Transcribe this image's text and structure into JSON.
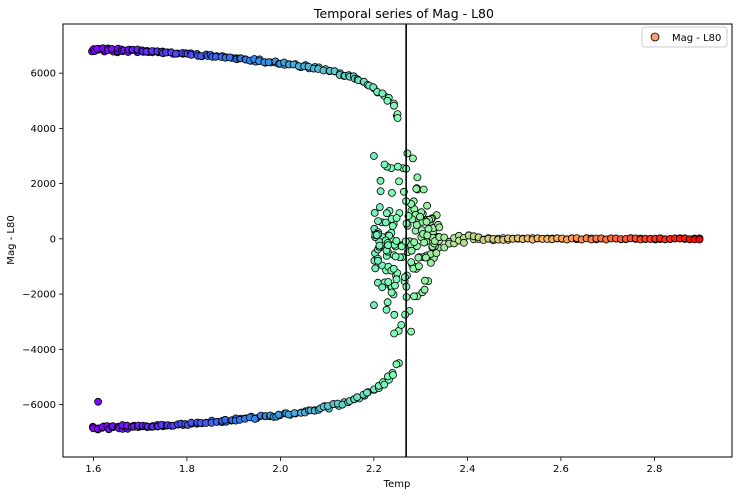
{
  "chart_data": {
    "type": "scatter",
    "title": "Temporal series of Mag - L80",
    "xlabel": "Temp",
    "ylabel": "Mag - L80",
    "xlim": [
      1.535,
      2.966
    ],
    "ylim": [
      -7900,
      7780
    ],
    "xticks": [
      1.6,
      1.8,
      2.0,
      2.2,
      2.4,
      2.6,
      2.8
    ],
    "xtick_labels": [
      "1.6",
      "1.8",
      "2.0",
      "2.2",
      "2.4",
      "2.6",
      "2.8"
    ],
    "yticks": [
      -6000,
      -4000,
      -2000,
      0,
      2000,
      4000,
      6000
    ],
    "ytick_labels": [
      "−6000",
      "−4000",
      "−2000",
      "0",
      "2000",
      "4000",
      "6000"
    ],
    "grid": false,
    "legend": {
      "position": "top-right",
      "entries": [
        {
          "label": "Mag - L80",
          "color": "#f4a070"
        }
      ]
    },
    "reference_line": {
      "orientation": "vertical",
      "x": 2.269,
      "color": "#000000"
    },
    "colormap": "rainbow",
    "marker": {
      "shape": "circle",
      "edgecolor": "#000000"
    },
    "x_range_of_points": [
      1.6,
      2.9
    ],
    "branches": [
      {
        "name": "upper",
        "x": [
          1.6,
          1.7,
          1.8,
          1.9,
          2.0,
          2.1,
          2.15,
          2.2,
          2.24,
          2.26
        ],
        "y": [
          6850,
          6800,
          6700,
          6550,
          6380,
          6100,
          5900,
          5500,
          4900,
          4200
        ]
      },
      {
        "name": "lower",
        "x": [
          1.6,
          1.7,
          1.8,
          1.9,
          2.0,
          2.1,
          2.15,
          2.2,
          2.24,
          2.26
        ],
        "y": [
          -6850,
          -6800,
          -6700,
          -6550,
          -6380,
          -6100,
          -5900,
          -5500,
          -4900,
          -4200
        ]
      }
    ],
    "critical_region": {
      "x": [
        2.2,
        2.34
      ],
      "y": [
        -5000,
        4800
      ]
    },
    "tail": {
      "x": [
        2.34,
        2.9
      ],
      "y": 0
    },
    "outliers": [
      {
        "x": 1.61,
        "y": -5900
      },
      {
        "x": 2.2,
        "y": 3000
      },
      {
        "x": 2.2,
        "y": -2400
      }
    ]
  }
}
